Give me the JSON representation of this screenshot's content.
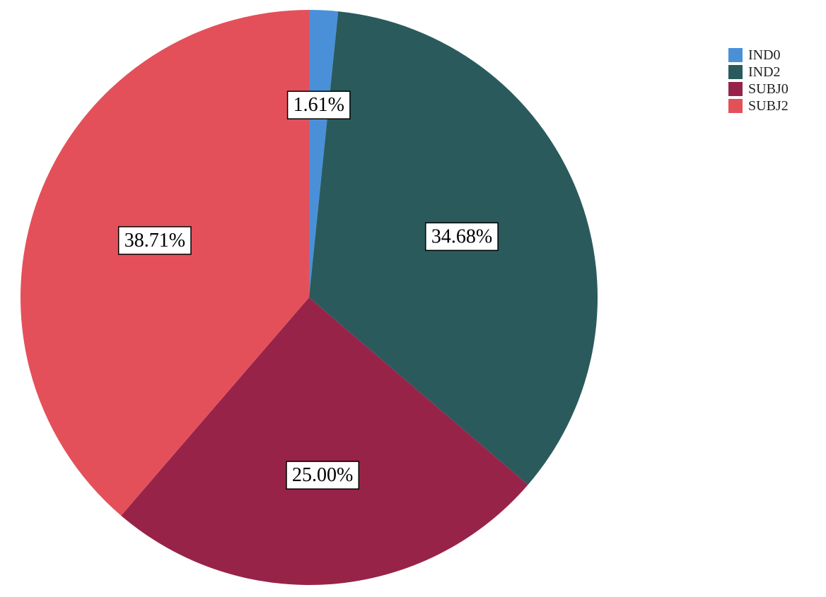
{
  "chart_data": {
    "type": "pie",
    "title": "",
    "categories": [
      "IND0",
      "IND2",
      "SUBJ0",
      "SUBJ2"
    ],
    "values": [
      1.61,
      34.68,
      25.0,
      38.71
    ],
    "labels": [
      "1.61%",
      "34.68%",
      "25.00%",
      "38.71%"
    ],
    "colors": [
      "#4a90d9",
      "#2a5a5c",
      "#982349",
      "#e4505a"
    ],
    "start_angle_deg": 0,
    "direction": "clockwise",
    "legend": {
      "placement": "top-right",
      "entries": [
        "IND0",
        "IND2",
        "SUBJ0",
        "SUBJ2"
      ]
    }
  }
}
